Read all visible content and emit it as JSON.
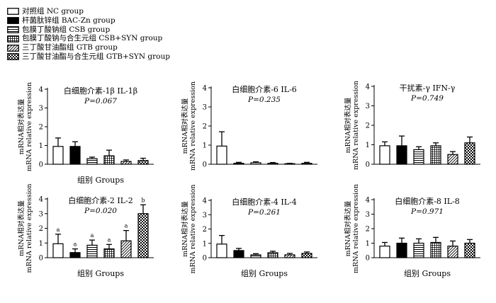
{
  "legend": [
    {
      "label": "对照组  NC group",
      "pattern": "white"
    },
    {
      "label": "杆菌肽锌组  BAC-Zn group",
      "pattern": "black"
    },
    {
      "label": "包膜丁酸钠组  CSB group",
      "pattern": "hlines"
    },
    {
      "label": "包膜丁酸钠与合生元组  CSB+SYN group",
      "pattern": "grid"
    },
    {
      "label": "三丁酸甘油酯组  GTB group",
      "pattern": "diag"
    },
    {
      "label": "三丁酸甘油酯与合生元组  GTB+SYN group",
      "pattern": "check"
    }
  ],
  "colors": {
    "ink": "#000000",
    "fill": "#ffffff"
  },
  "chart_data": [
    {
      "type": "bar",
      "title": "白细胞介素-1β IL-1β",
      "pvalue": "P=0.067",
      "ylabel_cn": "mRNA相对表达量",
      "ylabel_en": "mRNA relative expression",
      "xlabel": "组别 Groups",
      "ylim": [
        0,
        4
      ],
      "yticks": [
        "0",
        "1",
        "2",
        "3",
        "4"
      ],
      "series": [
        {
          "values": [
            0.95,
            0.95,
            0.3,
            0.45,
            0.15,
            0.2
          ],
          "errors": [
            0.45,
            0.25,
            0.08,
            0.3,
            0.08,
            0.12
          ]
        }
      ],
      "annotations": []
    },
    {
      "type": "bar",
      "title": "白细胞介素-6 IL-6",
      "pvalue": "P=0.235",
      "ylabel_cn": "mRNA相对表达量",
      "ylabel_en": "mRNA relative expression",
      "xlabel": "",
      "ylim": [
        0,
        4
      ],
      "yticks": [
        "0",
        "1",
        "2",
        "3",
        "4"
      ],
      "series": [
        {
          "values": [
            0.95,
            0.05,
            0.08,
            0.05,
            0.03,
            0.05
          ],
          "errors": [
            0.75,
            0.05,
            0.05,
            0.04,
            0.02,
            0.05
          ]
        }
      ],
      "annotations": []
    },
    {
      "type": "bar",
      "title": "干扰素-γ IFN-γ",
      "pvalue": "P=0.749",
      "ylabel_cn": "mRNA相对表达量",
      "ylabel_en": "mRNA relative expression",
      "xlabel": "",
      "ylim": [
        0,
        4
      ],
      "yticks": [
        "0",
        "1",
        "2",
        "3",
        "4"
      ],
      "series": [
        {
          "values": [
            0.95,
            0.95,
            0.75,
            0.95,
            0.5,
            1.1
          ],
          "errors": [
            0.2,
            0.5,
            0.15,
            0.15,
            0.15,
            0.3
          ]
        }
      ],
      "annotations": []
    },
    {
      "type": "bar",
      "title": "白细胞介素-2 IL-2",
      "pvalue": "P=0.020",
      "ylabel_cn": "mRNA相对表达量",
      "ylabel_en": "mRNA relative expression",
      "xlabel": "组别 Groups",
      "ylim": [
        0,
        4
      ],
      "yticks": [
        "0",
        "1",
        "2",
        "3",
        "4"
      ],
      "series": [
        {
          "values": [
            0.95,
            0.35,
            0.85,
            0.6,
            1.15,
            3.0
          ],
          "errors": [
            0.65,
            0.25,
            0.35,
            0.3,
            0.7,
            0.6
          ]
        }
      ],
      "annotations": [
        "a",
        "a",
        "a",
        "a",
        "a",
        "b"
      ]
    },
    {
      "type": "bar",
      "title": "白细胞介素-4 IL-4",
      "pvalue": "P=0.261",
      "ylabel_cn": "mRNA相对表达量",
      "ylabel_en": "mRNA relative expression",
      "xlabel": "组别 Groups",
      "ylim": [
        0,
        4
      ],
      "yticks": [
        "0",
        "1",
        "2",
        "3",
        "4"
      ],
      "series": [
        {
          "values": [
            0.95,
            0.5,
            0.2,
            0.35,
            0.2,
            0.3
          ],
          "errors": [
            0.6,
            0.15,
            0.08,
            0.1,
            0.1,
            0.1
          ]
        }
      ],
      "annotations": []
    },
    {
      "type": "bar",
      "title": "白细胞介素-8 IL-8",
      "pvalue": "P=0.971",
      "ylabel_cn": "mRNA相对表达量",
      "ylabel_en": "mRNA relative expression",
      "xlabel": "组别 Groups",
      "ylim": [
        0,
        4
      ],
      "yticks": [
        "0",
        "1",
        "2",
        "3",
        "4"
      ],
      "series": [
        {
          "values": [
            0.8,
            1.0,
            1.0,
            1.05,
            0.8,
            1.0
          ],
          "errors": [
            0.25,
            0.35,
            0.3,
            0.35,
            0.35,
            0.25
          ]
        }
      ],
      "annotations": []
    }
  ]
}
